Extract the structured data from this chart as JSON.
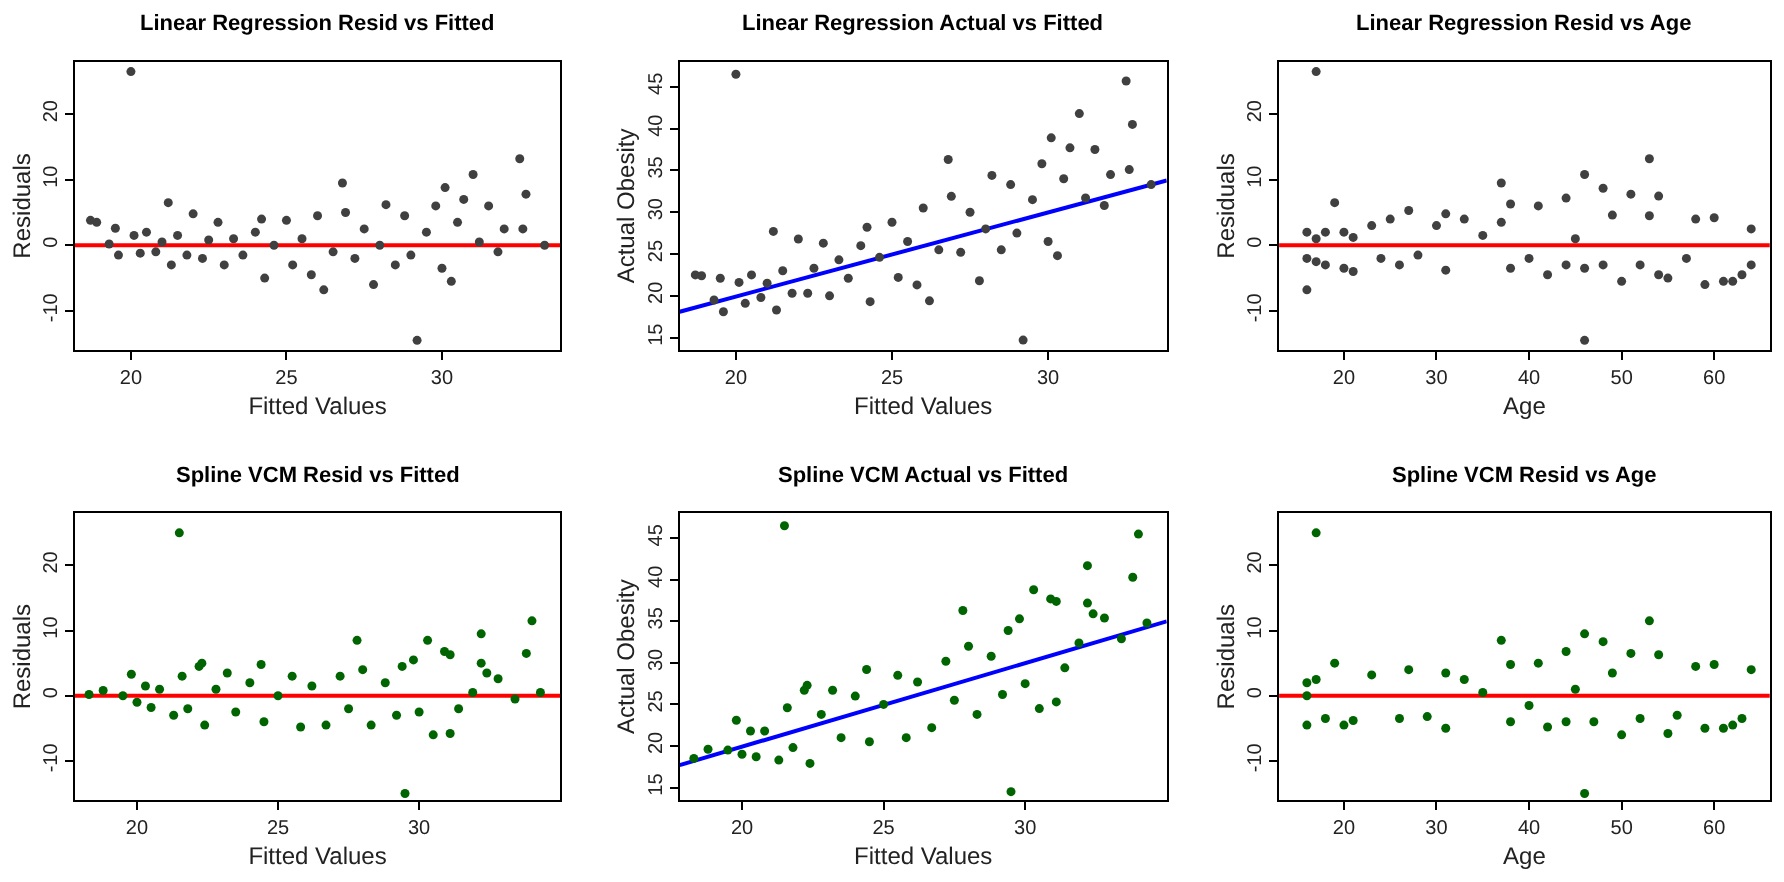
{
  "chart_data": [
    {
      "type": "scatter",
      "title": "Linear Regression Resid vs Fitted",
      "xlabel": "Fitted Values",
      "ylabel": "Residuals",
      "marker": "circle",
      "xlim": [
        18.2,
        33.8
      ],
      "ylim": [
        -16,
        28
      ],
      "xticks": [
        20,
        25,
        30
      ],
      "yticks": [
        -10,
        0,
        10,
        20
      ],
      "ref_lines": [
        {
          "axis": "y",
          "value": 0,
          "color": "#ff0000"
        }
      ],
      "series": [
        {
          "color": "#404040",
          "x": [
            18.7,
            18.9,
            19.3,
            19.5,
            19.6,
            20.0,
            20.1,
            20.3,
            20.5,
            20.8,
            21.0,
            21.2,
            21.3,
            21.5,
            21.8,
            22.0,
            22.3,
            22.5,
            22.8,
            23.0,
            23.3,
            23.6,
            24.0,
            24.2,
            24.3,
            24.6,
            25.0,
            25.2,
            25.5,
            25.8,
            26.0,
            26.2,
            26.5,
            26.8,
            26.9,
            27.2,
            27.5,
            27.8,
            28.0,
            28.2,
            28.5,
            28.8,
            29.0,
            29.2,
            29.5,
            29.8,
            30.0,
            30.1,
            30.3,
            30.5,
            30.7,
            31.0,
            31.2,
            31.5,
            31.8,
            32.0,
            32.5,
            32.6,
            32.7,
            33.3
          ],
          "values": [
            3.8,
            3.5,
            0.2,
            2.6,
            -1.5,
            26.5,
            1.5,
            -1.2,
            2,
            -1,
            0.5,
            6.5,
            -3,
            1.5,
            -1.5,
            4.8,
            -2,
            0.8,
            3.5,
            -3,
            1,
            -1.5,
            2,
            4,
            -5,
            0,
            3.8,
            -3,
            1,
            -4.5,
            4.5,
            -6.8,
            -1,
            9.5,
            5,
            -2,
            2.5,
            -6,
            0,
            6.2,
            -3,
            4.5,
            -1.5,
            -14.5,
            2,
            6,
            -3.5,
            8.8,
            -5.5,
            3.5,
            7,
            10.8,
            0.5,
            6,
            -1,
            2.5,
            13.2,
            2.5,
            7.8,
            0
          ]
        }
      ]
    },
    {
      "type": "scatter",
      "title": "Linear Regression Actual vs Fitted",
      "xlabel": "Fitted Values",
      "ylabel": "Actual Obesity",
      "xlim": [
        18.2,
        33.8
      ],
      "ylim": [
        13.5,
        48
      ],
      "xticks": [
        20,
        25,
        30
      ],
      "yticks": [
        15,
        20,
        25,
        30,
        35,
        40,
        45
      ],
      "series": [
        {
          "color": "#404040",
          "marker": "circle",
          "x": [
            18.7,
            18.9,
            19.3,
            19.5,
            19.6,
            20.0,
            20.1,
            20.3,
            20.5,
            20.8,
            21.0,
            21.2,
            21.3,
            21.5,
            21.8,
            22.0,
            22.3,
            22.5,
            22.8,
            23.0,
            23.3,
            23.6,
            24.0,
            24.2,
            24.3,
            24.6,
            25.0,
            25.2,
            25.5,
            25.8,
            26.0,
            26.2,
            26.5,
            26.8,
            26.9,
            27.2,
            27.5,
            27.8,
            28.0,
            28.2,
            28.5,
            28.8,
            29.0,
            29.2,
            29.5,
            29.8,
            30.0,
            30.1,
            30.3,
            30.5,
            30.7,
            31.0,
            31.2,
            31.5,
            31.8,
            32.0,
            32.5,
            32.6,
            32.7,
            33.3
          ],
          "values": [
            22.5,
            22.4,
            19.5,
            22.1,
            18.1,
            46.5,
            21.6,
            19.1,
            22.5,
            19.8,
            21.5,
            27.7,
            18.3,
            23,
            20.3,
            26.8,
            20.3,
            23.3,
            26.3,
            20,
            24.3,
            22.1,
            26,
            28.2,
            19.3,
            24.6,
            28.8,
            22.2,
            26.5,
            21.3,
            30.5,
            19.4,
            25.5,
            36.3,
            31.9,
            25.2,
            30,
            21.8,
            28,
            34.4,
            25.5,
            33.3,
            27.5,
            14.7,
            31.5,
            35.8,
            26.5,
            38.9,
            24.8,
            34,
            37.7,
            41.8,
            31.7,
            37.5,
            30.8,
            34.5,
            45.7,
            35.1,
            40.5,
            33.3
          ]
        },
        {
          "type": "line",
          "color": "#0000ff",
          "x": [
            18.2,
            33.8
          ],
          "values": [
            18.1,
            33.8
          ]
        }
      ]
    },
    {
      "type": "scatter",
      "title": "Linear Regression Resid vs Age",
      "xlabel": "Age",
      "ylabel": "Residuals",
      "marker": "circle",
      "xlim": [
        13,
        66
      ],
      "ylim": [
        -16,
        28
      ],
      "xticks": [
        20,
        30,
        40,
        50,
        60
      ],
      "yticks": [
        -10,
        0,
        10,
        20
      ],
      "ref_lines": [
        {
          "axis": "y",
          "value": 0,
          "color": "#ff0000"
        }
      ],
      "series": [
        {
          "color": "#404040",
          "x": [
            16,
            16,
            16,
            17,
            17,
            17,
            18,
            18,
            19,
            20,
            20,
            21,
            21,
            23,
            24,
            25,
            26,
            27,
            28,
            30,
            31,
            31,
            33,
            35,
            37,
            37,
            38,
            38,
            40,
            41,
            42,
            44,
            44,
            45,
            46,
            46,
            46,
            48,
            48,
            49,
            50,
            51,
            52,
            53,
            53,
            54,
            54,
            55,
            57,
            58,
            59,
            60,
            61,
            62,
            63,
            64,
            64
          ],
          "values": [
            -6.8,
            2,
            -2,
            26.5,
            1,
            -2.5,
            2,
            -3,
            6.5,
            2,
            -3.5,
            1.2,
            -4,
            3,
            -2,
            4,
            -3,
            5.3,
            -1.5,
            3,
            -3.8,
            4.8,
            4,
            1.5,
            9.5,
            3.5,
            6.3,
            -3.5,
            -2,
            6,
            -4.5,
            7.2,
            -3,
            1,
            10.8,
            -14.5,
            -3.5,
            8.7,
            -3,
            4.6,
            -5.5,
            7.8,
            -3,
            13.2,
            4.5,
            7.5,
            -4.5,
            -5,
            -2,
            4,
            -6,
            4.2,
            -5.5,
            -5.5,
            -4.5,
            2.5,
            -3
          ]
        }
      ]
    },
    {
      "type": "scatter",
      "title": "Spline VCM Resid vs Fitted",
      "xlabel": "Fitted Values",
      "ylabel": "Residuals",
      "marker": "circle",
      "xlim": [
        17.8,
        35
      ],
      "ylim": [
        -16,
        28
      ],
      "xticks": [
        20,
        25,
        30
      ],
      "yticks": [
        -10,
        0,
        10,
        20
      ],
      "ref_lines": [
        {
          "axis": "y",
          "value": 0,
          "color": "#ff0000"
        }
      ],
      "series": [
        {
          "color": "#006400",
          "x": [
            18.3,
            18.8,
            19.5,
            19.8,
            20.0,
            20.3,
            20.5,
            20.8,
            21.3,
            21.5,
            21.6,
            21.8,
            22.2,
            22.3,
            22.4,
            22.8,
            23.2,
            23.5,
            24.0,
            24.4,
            24.5,
            25.0,
            25.5,
            25.8,
            26.2,
            26.7,
            27.2,
            27.5,
            27.8,
            28.0,
            28.3,
            28.8,
            29.2,
            29.4,
            29.5,
            29.8,
            30.0,
            30.3,
            30.5,
            30.9,
            31.1,
            31.1,
            31.4,
            31.9,
            32.2,
            32.2,
            32.4,
            32.8,
            33.4,
            33.8,
            34.0,
            34.3
          ],
          "values": [
            0.2,
            0.8,
            0,
            3.3,
            -1,
            1.5,
            -1.8,
            1,
            -3,
            25,
            3,
            -2,
            4.5,
            5,
            -4.5,
            1,
            3.5,
            -2.5,
            2,
            4.8,
            -4,
            0,
            3,
            -4.8,
            1.5,
            -4.5,
            3,
            -2,
            8.5,
            4,
            -4.5,
            2,
            -3,
            4.5,
            -15,
            5.5,
            -2.5,
            8.5,
            -6,
            6.8,
            6.3,
            -5.8,
            -2,
            0.5,
            9.5,
            5,
            3.5,
            2.6,
            -0.5,
            6.5,
            11.5,
            0.5
          ]
        }
      ]
    },
    {
      "type": "scatter",
      "title": "Spline VCM Actual vs Fitted",
      "xlabel": "Fitted Values",
      "ylabel": "Actual Obesity",
      "xlim": [
        17.8,
        35
      ],
      "ylim": [
        13.5,
        48
      ],
      "xticks": [
        20,
        25,
        30
      ],
      "yticks": [
        15,
        20,
        25,
        30,
        35,
        40,
        45
      ],
      "series": [
        {
          "color": "#006400",
          "marker": "circle",
          "x": [
            18.3,
            18.8,
            19.5,
            19.8,
            20.0,
            20.3,
            20.5,
            20.8,
            21.3,
            21.5,
            21.6,
            21.8,
            22.2,
            22.3,
            22.4,
            22.8,
            23.2,
            23.5,
            24.0,
            24.4,
            24.5,
            25.0,
            25.5,
            25.8,
            26.2,
            26.7,
            27.2,
            27.5,
            27.8,
            28.0,
            28.3,
            28.8,
            29.2,
            29.4,
            29.5,
            29.8,
            30.0,
            30.3,
            30.5,
            30.9,
            31.1,
            31.1,
            31.4,
            31.9,
            32.2,
            32.2,
            32.4,
            32.8,
            33.4,
            33.8,
            34.0,
            34.3
          ],
          "values": [
            18.5,
            19.6,
            19.5,
            23.1,
            19,
            21.8,
            18.7,
            21.8,
            18.3,
            46.5,
            24.6,
            19.8,
            26.7,
            27.3,
            17.9,
            23.8,
            26.7,
            21,
            26,
            29.2,
            20.5,
            25,
            28.5,
            21,
            27.7,
            22.2,
            30.2,
            25.5,
            36.3,
            32,
            23.8,
            30.8,
            26.2,
            33.9,
            14.5,
            35.3,
            27.5,
            38.8,
            24.5,
            37.7,
            37.4,
            25.3,
            29.4,
            32.4,
            41.7,
            37.2,
            35.9,
            35.4,
            32.9,
            40.3,
            45.5,
            34.8
          ]
        },
        {
          "type": "line",
          "color": "#0000ff",
          "x": [
            17.8,
            35
          ],
          "values": [
            17.7,
            35
          ]
        }
      ]
    },
    {
      "type": "scatter",
      "title": "Spline VCM Resid vs Age",
      "xlabel": "Age",
      "ylabel": "Residuals",
      "marker": "circle",
      "xlim": [
        13,
        66
      ],
      "ylim": [
        -16,
        28
      ],
      "xticks": [
        20,
        30,
        40,
        50,
        60
      ],
      "yticks": [
        -10,
        0,
        10,
        20
      ],
      "ref_lines": [
        {
          "axis": "y",
          "value": 0,
          "color": "#ff0000"
        }
      ],
      "series": [
        {
          "color": "#006400",
          "x": [
            16,
            16,
            16,
            17,
            17,
            18,
            19,
            20,
            21,
            23,
            26,
            27,
            29,
            31,
            31,
            33,
            35,
            37,
            38,
            38,
            40,
            41,
            42,
            44,
            44,
            45,
            46,
            46,
            47,
            48,
            49,
            50,
            51,
            52,
            53,
            54,
            55,
            56,
            58,
            59,
            60,
            61,
            62,
            63,
            64
          ],
          "values": [
            -4.5,
            2,
            0,
            25,
            2.5,
            -3.5,
            5,
            -4.5,
            -3.8,
            3.2,
            -3.5,
            4,
            -3.2,
            -5,
            3.5,
            2.5,
            0.5,
            8.5,
            4.8,
            -4,
            -1.5,
            5,
            -4.8,
            6.8,
            -4,
            1,
            9.5,
            -15,
            -4,
            8.3,
            3.5,
            -6,
            6.5,
            -3.5,
            11.5,
            6.3,
            -5.8,
            -3,
            4.5,
            -5,
            4.8,
            -5,
            -4.5,
            -3.5,
            4
          ]
        }
      ]
    }
  ]
}
